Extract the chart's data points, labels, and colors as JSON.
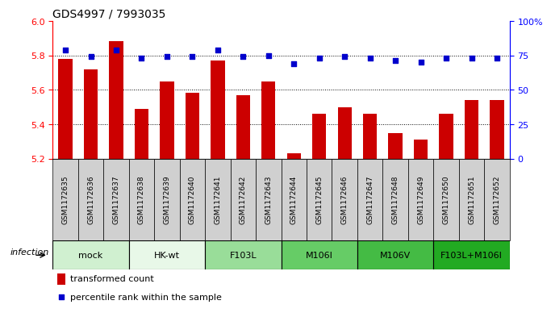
{
  "title": "GDS4997 / 7993035",
  "samples": [
    "GSM1172635",
    "GSM1172636",
    "GSM1172637",
    "GSM1172638",
    "GSM1172639",
    "GSM1172640",
    "GSM1172641",
    "GSM1172642",
    "GSM1172643",
    "GSM1172644",
    "GSM1172645",
    "GSM1172646",
    "GSM1172647",
    "GSM1172648",
    "GSM1172649",
    "GSM1172650",
    "GSM1172651",
    "GSM1172652"
  ],
  "bar_values": [
    5.78,
    5.72,
    5.88,
    5.49,
    5.65,
    5.58,
    5.77,
    5.57,
    5.65,
    5.23,
    5.46,
    5.5,
    5.46,
    5.35,
    5.31,
    5.46,
    5.54,
    5.54
  ],
  "percentile_values": [
    79,
    74,
    79,
    73,
    74,
    74,
    79,
    74,
    75,
    69,
    73,
    74,
    73,
    71,
    70,
    73,
    73,
    73
  ],
  "groups": [
    {
      "label": "mock",
      "start": 0,
      "end": 3,
      "color": "#d0f0d0"
    },
    {
      "label": "HK-wt",
      "start": 3,
      "end": 6,
      "color": "#e8f8e8"
    },
    {
      "label": "F103L",
      "start": 6,
      "end": 9,
      "color": "#99dd99"
    },
    {
      "label": "M106I",
      "start": 9,
      "end": 12,
      "color": "#66cc66"
    },
    {
      "label": "M106V",
      "start": 12,
      "end": 15,
      "color": "#44bb44"
    },
    {
      "label": "F103L+M106I",
      "start": 15,
      "end": 18,
      "color": "#22aa22"
    }
  ],
  "bar_color": "#cc0000",
  "dot_color": "#0000cc",
  "ylim_left": [
    5.2,
    6.0
  ],
  "ylim_right": [
    0,
    100
  ],
  "yticks_left": [
    5.2,
    5.4,
    5.6,
    5.8,
    6.0
  ],
  "yticks_right": [
    0,
    25,
    50,
    75,
    100
  ],
  "ytick_labels_right": [
    "0",
    "25",
    "50",
    "75",
    "100%"
  ],
  "gridlines": [
    5.4,
    5.6,
    5.8
  ],
  "legend_bar_label": "transformed count",
  "legend_dot_label": "percentile rank within the sample",
  "infection_label": "infection",
  "title_fontsize": 10,
  "axis_fontsize": 8,
  "sample_fontsize": 6.5
}
